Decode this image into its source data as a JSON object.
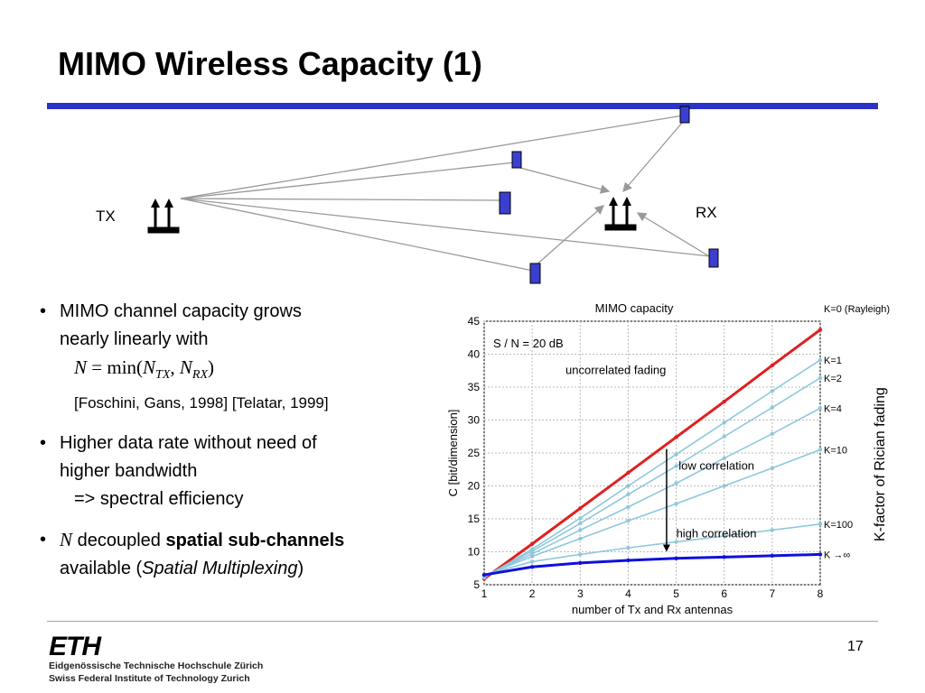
{
  "slide": {
    "title": "MIMO Wireless Capacity (1)",
    "page_number": "17",
    "accent_color": "#2a33c8"
  },
  "diagram": {
    "tx_label": "TX",
    "rx_label": "RX"
  },
  "bullets": {
    "b1_line1": "MIMO channel capacity grows",
    "b1_line2": "nearly linearly with",
    "b1_ref": "[Foschini, Gans, 1998] [Telatar, 1999]",
    "b2_line1": "Higher data rate without need of",
    "b2_line2": "higher bandwidth",
    "b2_line3": "=> spectral efficiency",
    "b3_N": "N",
    "b3_text": "decoupled",
    "b3_bold": "spatial  sub-channels",
    "b3_line2_pre": "available   (",
    "b3_italic": "Spatial Multiplexing",
    "b3_line2_post": ")"
  },
  "side_label": "K-factor of Rician fading",
  "footer": {
    "logo": "ETH",
    "line1": "Eidgenössische Technische Hochschule Zürich",
    "line2": "Swiss Federal Institute of Technology Zurich"
  },
  "chart_data": {
    "type": "line",
    "title": "MIMO capacity",
    "xlabel": "number of Tx and Rx antennas",
    "ylabel": "C [bit/dimension]",
    "x": [
      1,
      2,
      3,
      4,
      5,
      6,
      7,
      8
    ],
    "xlim": [
      1,
      8
    ],
    "ylim": [
      5,
      45
    ],
    "xticks": [
      1,
      2,
      3,
      4,
      5,
      6,
      7,
      8
    ],
    "yticks": [
      5,
      10,
      15,
      20,
      25,
      30,
      35,
      40,
      45
    ],
    "grid": true,
    "annotations": {
      "snr": "S / N = 20 dB",
      "uncorrelated": "uncorrelated fading",
      "low": "low correlation",
      "high": "high correlation"
    },
    "series": [
      {
        "name": "K=0 (Rayleigh)",
        "color": "#e02020",
        "values": [
          5.9,
          11.2,
          16.6,
          22.0,
          27.4,
          32.8,
          38.3,
          43.7
        ]
      },
      {
        "name": "K=1",
        "color": "#8ec8dc",
        "values": [
          6.1,
          10.4,
          15.1,
          20.0,
          24.8,
          29.6,
          34.4,
          39.1
        ]
      },
      {
        "name": "K=2",
        "color": "#8ec8dc",
        "values": [
          6.2,
          10.1,
          14.3,
          18.7,
          23.0,
          27.5,
          31.9,
          36.4
        ]
      },
      {
        "name": "K=4",
        "color": "#8ec8dc",
        "values": [
          6.3,
          9.7,
          13.3,
          16.8,
          20.4,
          24.2,
          27.9,
          31.8
        ]
      },
      {
        "name": "K=10",
        "color": "#8ec8dc",
        "values": [
          6.4,
          9.3,
          12.0,
          14.7,
          17.3,
          20.0,
          22.7,
          25.5
        ]
      },
      {
        "name": "K=100",
        "color": "#8ec8dc",
        "values": [
          6.5,
          8.5,
          9.6,
          10.6,
          11.5,
          12.4,
          13.3,
          14.2
        ]
      },
      {
        "name": "K →∞",
        "color": "#1010e0",
        "values": [
          6.5,
          7.7,
          8.3,
          8.7,
          9.0,
          9.2,
          9.4,
          9.6
        ]
      }
    ]
  }
}
